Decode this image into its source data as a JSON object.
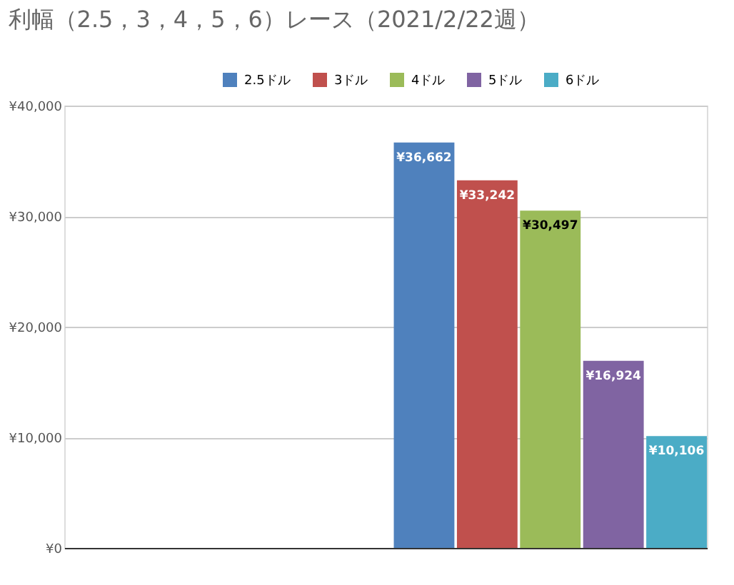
{
  "chart_data": {
    "type": "bar",
    "title": "利幅（2.5，3，4，5，6）レース（2021/2/22週）",
    "categories": [
      null,
      null
    ],
    "series": [
      {
        "name": "2.5ドル",
        "color": "#4f81bd",
        "values": [
          null,
          36662
        ],
        "value_labels": [
          null,
          "¥36,662"
        ]
      },
      {
        "name": "3ドル",
        "color": "#c0504d",
        "values": [
          null,
          33242
        ],
        "value_labels": [
          null,
          "¥33,242"
        ]
      },
      {
        "name": "4ドル",
        "color": "#9bbb59",
        "values": [
          null,
          30497
        ],
        "value_labels": [
          null,
          "¥30,497"
        ]
      },
      {
        "name": "5ドル",
        "color": "#8064a2",
        "values": [
          null,
          16924
        ],
        "value_labels": [
          null,
          "¥16,924"
        ]
      },
      {
        "name": "6ドル",
        "color": "#4bacc6",
        "values": [
          null,
          10106
        ],
        "value_labels": [
          null,
          "¥10,106"
        ]
      }
    ],
    "ylim": [
      0,
      40000
    ],
    "yticks": [
      {
        "value": 0,
        "label": "¥0"
      },
      {
        "value": 10000,
        "label": "¥10,000"
      },
      {
        "value": 20000,
        "label": "¥20,000"
      },
      {
        "value": 30000,
        "label": "¥30,000"
      },
      {
        "value": 40000,
        "label": "¥40,000"
      }
    ],
    "grid": "y",
    "legend": "top right",
    "tick_labels": "y"
  }
}
